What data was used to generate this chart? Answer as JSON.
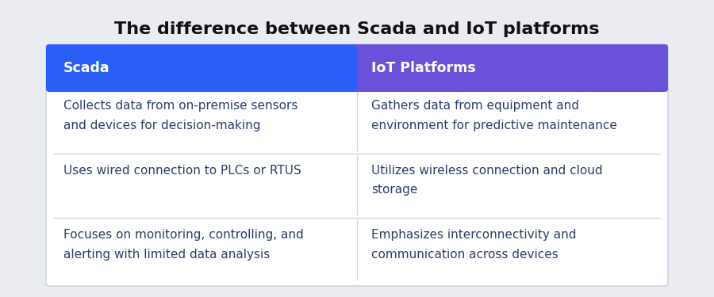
{
  "title": "The difference between Scada and IoT platforms",
  "title_fontsize": 16,
  "background_color": "#eaecf2",
  "table_bg": "#ffffff",
  "header": [
    "Scada",
    "IoT Platforms"
  ],
  "header_colors": [
    "#2B5EF7",
    "#6B50D9"
  ],
  "header_text_color": "#ffffff",
  "header_fontsize": 12.5,
  "rows": [
    [
      "Collects data from on-premise sensors\nand devices for decision-making",
      "Gathers data from equipment and\nenvironment for predictive maintenance"
    ],
    [
      "Uses wired connection to PLCs or RTUS",
      "Utilizes wireless connection and cloud\nstorage"
    ],
    [
      "Focuses on monitoring, controlling, and\nalerting with limited data analysis",
      "Emphasizes interconnectivity and\ncommunication across devices"
    ]
  ],
  "row_text_color": "#2c3e6b",
  "row_fontsize": 11,
  "divider_color": "#d0d4e0",
  "header_fontweight": "bold"
}
